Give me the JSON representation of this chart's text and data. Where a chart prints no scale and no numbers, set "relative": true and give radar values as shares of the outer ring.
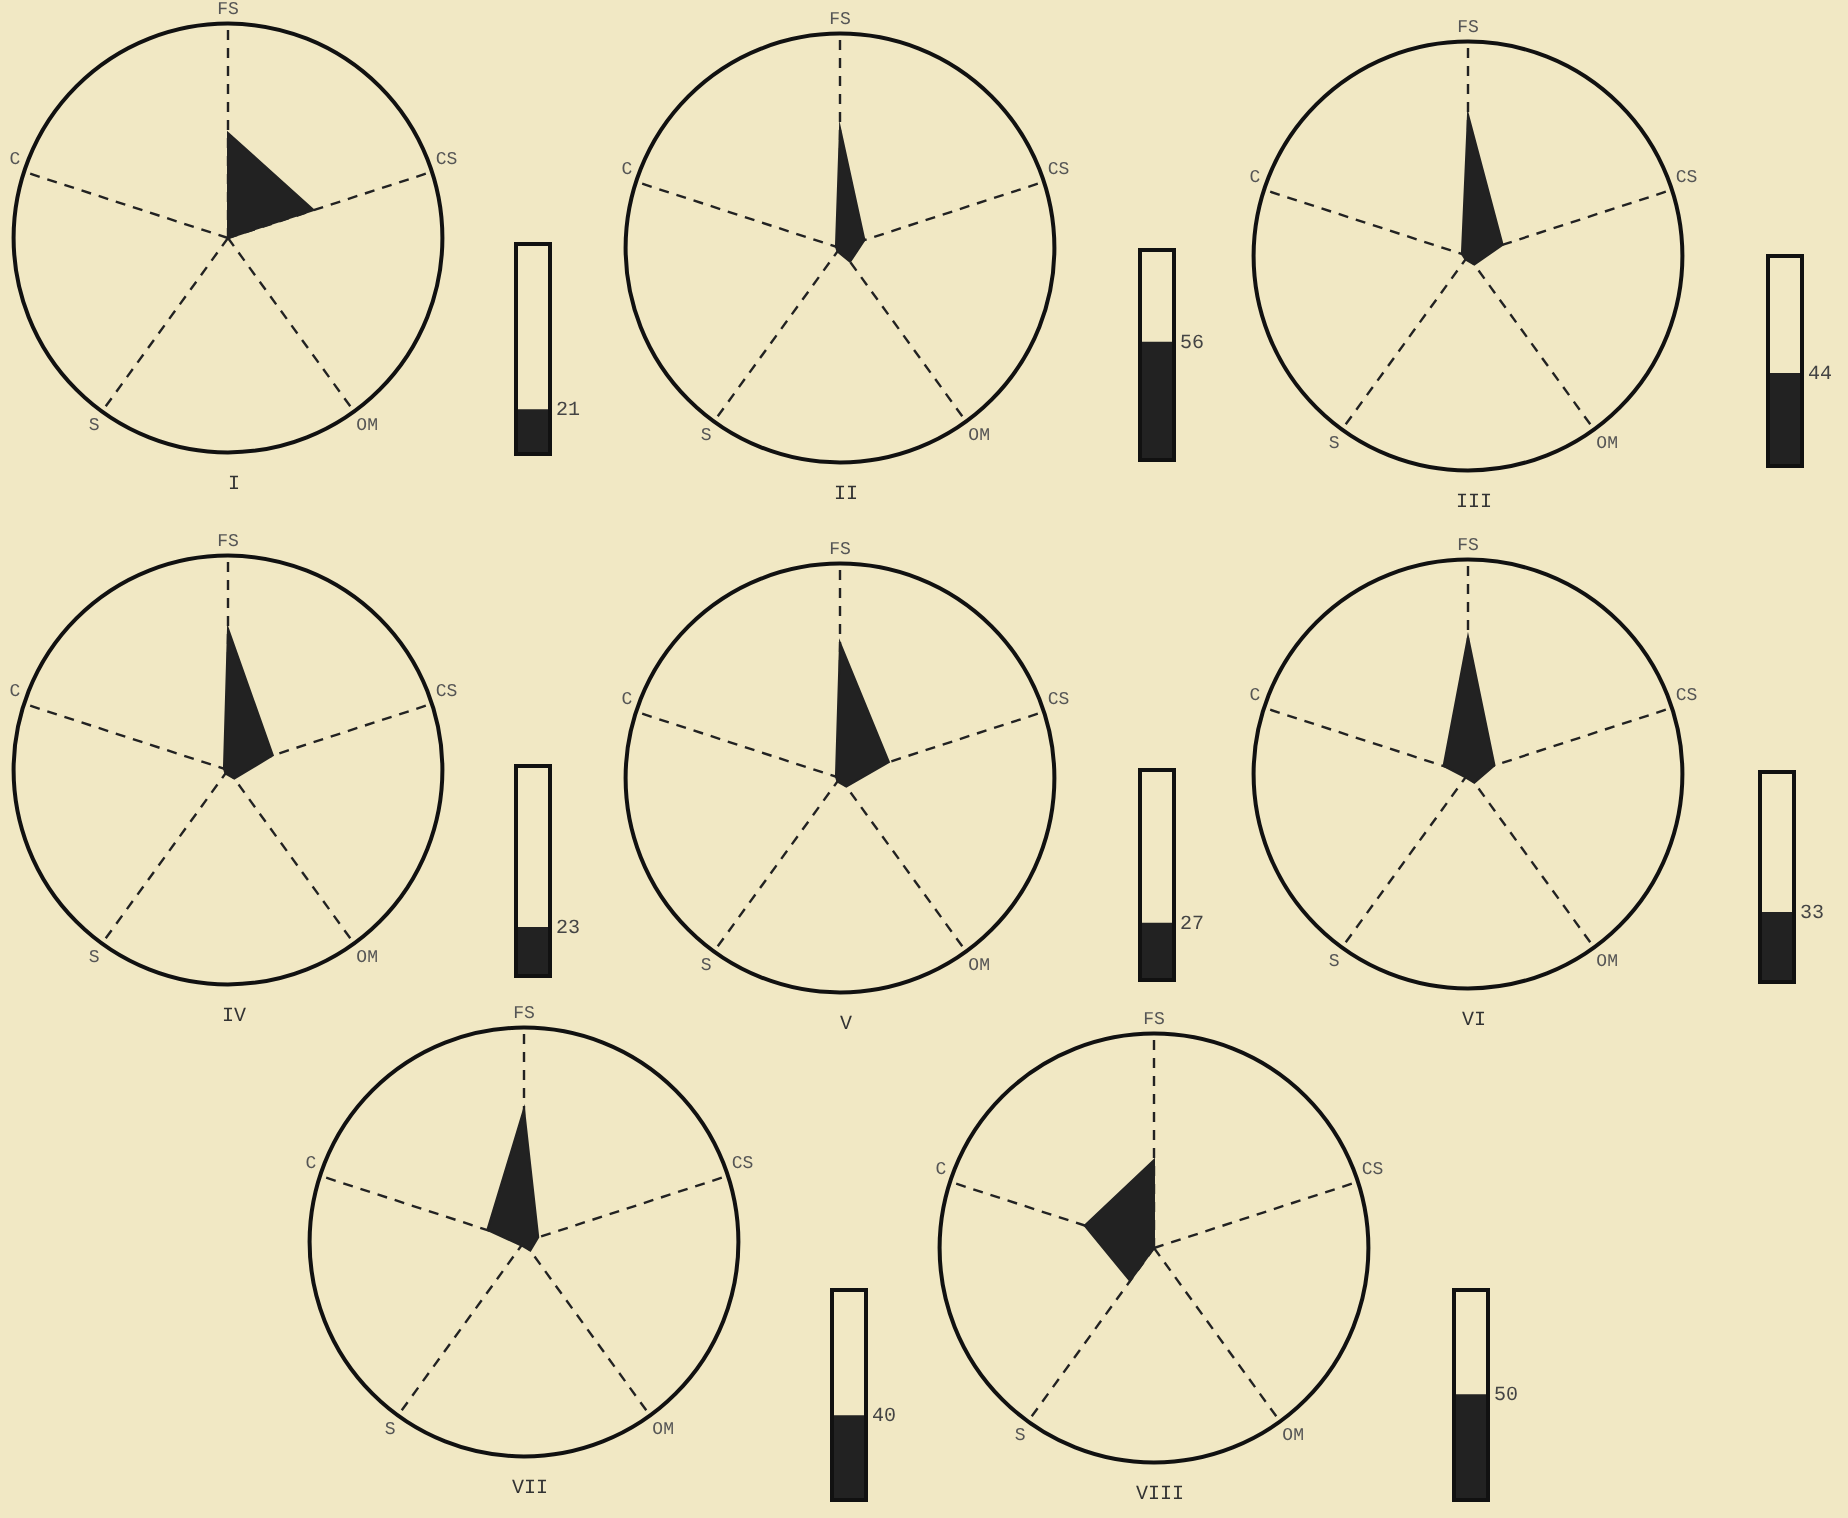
{
  "chart_data": [
    {
      "type": "radar",
      "title": "I",
      "categories": [
        "FS",
        "CS",
        "OM",
        "S",
        "C"
      ],
      "relative": true,
      "grid": true,
      "legend": false,
      "series": [
        {
          "color": "#222222",
          "values": [
            0.49,
            0.42,
            0,
            0,
            0
          ]
        }
      ]
    },
    {
      "type": "bar",
      "categories": [
        null
      ],
      "values": [
        21
      ],
      "color": "#222222",
      "ylim": [
        0,
        100
      ],
      "data_labels": true,
      "tick_labels": false,
      "legend": false
    },
    {
      "type": "radar",
      "title": "II",
      "categories": [
        "FS",
        "CS",
        "OM",
        "S",
        "C"
      ],
      "relative": true,
      "grid": true,
      "legend": false,
      "series": [
        {
          "color": "#222222",
          "values": [
            0.56,
            0.12,
            0.08,
            0.02,
            0.02
          ]
        }
      ]
    },
    {
      "type": "bar",
      "categories": [
        null
      ],
      "values": [
        56
      ],
      "color": "#222222",
      "ylim": [
        0,
        100
      ],
      "data_labels": true,
      "tick_labels": false,
      "legend": false
    },
    {
      "type": "radar",
      "title": "III",
      "categories": [
        "FS",
        "CS",
        "OM",
        "S",
        "C"
      ],
      "relative": true,
      "grid": true,
      "legend": false,
      "series": [
        {
          "color": "#222222",
          "values": [
            0.66,
            0.17,
            0.05,
            0.02,
            0.03
          ]
        }
      ]
    },
    {
      "type": "bar",
      "categories": [
        null
      ],
      "values": [
        44
      ],
      "color": "#222222",
      "ylim": [
        0,
        100
      ],
      "data_labels": true,
      "tick_labels": false,
      "legend": false
    },
    {
      "type": "radar",
      "title": "IV",
      "categories": [
        "FS",
        "CS",
        "OM",
        "S",
        "C"
      ],
      "relative": true,
      "grid": true,
      "legend": false,
      "series": [
        {
          "color": "#222222",
          "values": [
            0.66,
            0.22,
            0.05,
            0.02,
            0.02
          ]
        }
      ]
    },
    {
      "type": "bar",
      "categories": [
        null
      ],
      "values": [
        23
      ],
      "color": "#222222",
      "ylim": [
        0,
        100
      ],
      "data_labels": true,
      "tick_labels": false,
      "legend": false
    },
    {
      "type": "radar",
      "title": "V",
      "categories": [
        "FS",
        "CS",
        "OM",
        "S",
        "C"
      ],
      "relative": true,
      "grid": true,
      "legend": false,
      "series": [
        {
          "color": "#222222",
          "values": [
            0.63,
            0.24,
            0.05,
            0.02,
            0.02
          ]
        }
      ]
    },
    {
      "type": "bar",
      "categories": [
        null
      ],
      "values": [
        27
      ],
      "color": "#222222",
      "ylim": [
        0,
        100
      ],
      "data_labels": true,
      "tick_labels": false,
      "legend": false
    },
    {
      "type": "radar",
      "title": "VI",
      "categories": [
        "FS",
        "CS",
        "OM",
        "S",
        "C"
      ],
      "relative": true,
      "grid": true,
      "legend": false,
      "series": [
        {
          "color": "#222222",
          "values": [
            0.64,
            0.13,
            0.05,
            0.02,
            0.12
          ]
        }
      ]
    },
    {
      "type": "bar",
      "categories": [
        null
      ],
      "values": [
        33
      ],
      "color": "#222222",
      "ylim": [
        0,
        100
      ],
      "data_labels": true,
      "tick_labels": false,
      "legend": false
    },
    {
      "type": "radar",
      "title": "VII",
      "categories": [
        "FS",
        "CS",
        "OM",
        "S",
        "C"
      ],
      "relative": true,
      "grid": true,
      "legend": false,
      "series": [
        {
          "color": "#222222",
          "values": [
            0.62,
            0.07,
            0.05,
            0.02,
            0.18
          ]
        }
      ]
    },
    {
      "type": "bar",
      "categories": [
        null
      ],
      "values": [
        40
      ],
      "color": "#222222",
      "ylim": [
        0,
        100
      ],
      "data_labels": true,
      "tick_labels": false,
      "legend": false
    },
    {
      "type": "radar",
      "title": "VIII",
      "categories": [
        "FS",
        "CS",
        "OM",
        "S",
        "C"
      ],
      "relative": true,
      "grid": true,
      "legend": false,
      "series": [
        {
          "color": "#222222",
          "values": [
            0.41,
            0,
            0,
            0.19,
            0.34
          ]
        }
      ]
    },
    {
      "type": "bar",
      "categories": [
        null
      ],
      "values": [
        50
      ],
      "color": "#222222",
      "ylim": [
        0,
        100
      ],
      "data_labels": true,
      "tick_labels": false,
      "legend": false
    }
  ]
}
